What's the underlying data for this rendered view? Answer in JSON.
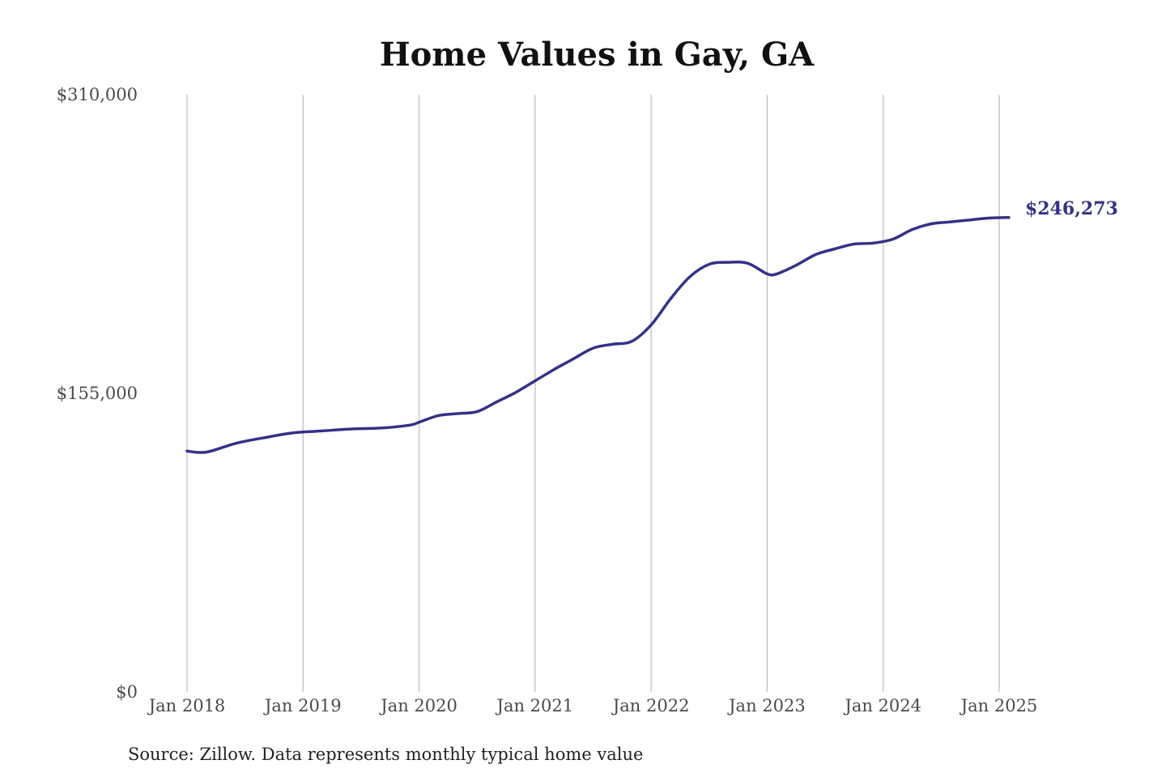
{
  "chart_data": {
    "type": "line",
    "title": "Home Values in Gay, GA",
    "xlabel": "",
    "ylabel": "",
    "ylim": [
      0,
      310000
    ],
    "y_ticks": [
      {
        "value": 310000,
        "label": "$310,000"
      },
      {
        "value": 155000,
        "label": "$155,000"
      },
      {
        "value": 0,
        "label": "$0"
      }
    ],
    "x_ticks": [
      {
        "value": "2018-01",
        "label": "Jan 2018"
      },
      {
        "value": "2019-01",
        "label": "Jan 2019"
      },
      {
        "value": "2020-01",
        "label": "Jan 2020"
      },
      {
        "value": "2021-01",
        "label": "Jan 2021"
      },
      {
        "value": "2022-01",
        "label": "Jan 2022"
      },
      {
        "value": "2023-01",
        "label": "Jan 2023"
      },
      {
        "value": "2024-01",
        "label": "Jan 2024"
      },
      {
        "value": "2025-01",
        "label": "Jan 2025"
      }
    ],
    "grid": "vertical",
    "line_color": "#333287",
    "end_label": "$246,273",
    "source": "Source: Zillow. Data represents monthly typical home value",
    "series": [
      {
        "x": [
          "2018-01",
          "2018-03",
          "2018-06",
          "2018-09",
          "2018-12",
          "2019-03",
          "2019-06",
          "2019-09",
          "2019-12",
          "2020-01",
          "2020-03",
          "2020-05",
          "2020-07",
          "2020-09",
          "2020-11",
          "2021-01",
          "2021-03",
          "2021-05",
          "2021-07",
          "2021-09",
          "2021-11",
          "2022-01",
          "2022-03",
          "2022-05",
          "2022-07",
          "2022-09",
          "2022-11",
          "2023-01",
          "2023-02",
          "2023-04",
          "2023-06",
          "2023-08",
          "2023-10",
          "2023-12",
          "2024-02",
          "2024-04",
          "2024-06",
          "2024-08",
          "2024-10",
          "2024-12",
          "2025-02"
        ],
        "values": [
          125000,
          124500,
          129000,
          132000,
          134500,
          135500,
          136500,
          137000,
          138500,
          140000,
          143500,
          144500,
          145500,
          150500,
          155500,
          161500,
          167500,
          173000,
          178500,
          180500,
          182000,
          190500,
          204000,
          215500,
          222000,
          223000,
          222500,
          217000,
          217000,
          221500,
          227000,
          230000,
          232500,
          233000,
          235000,
          240000,
          243000,
          244000,
          245000,
          246000,
          246273
        ]
      }
    ]
  }
}
